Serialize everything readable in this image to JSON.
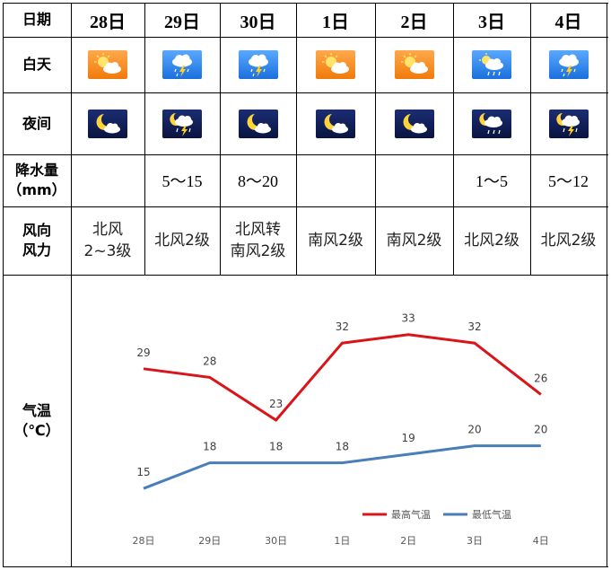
{
  "table": {
    "header_label": "日期",
    "row_labels": {
      "day": "白天",
      "night": "夜间",
      "precip_line1": "降水量",
      "precip_line2": "（mm）",
      "wind_line1": "风向",
      "wind_line2": "风力",
      "temp_line1": "气温",
      "temp_line2": "（℃）"
    },
    "columns": [
      {
        "date": "28日",
        "day_icon": "sun-cloud-icon",
        "night_icon": "moon-cloud-icon",
        "precip": "",
        "wind_line1": "北风",
        "wind_line2": "2~3级"
      },
      {
        "date": "29日",
        "day_icon": "thunder-rain-icon",
        "night_icon": "moon-thunder-rain-icon",
        "precip": "5～15",
        "wind_line1": "北风2级",
        "wind_line2": ""
      },
      {
        "date": "30日",
        "day_icon": "thunder-rain-icon",
        "night_icon": "moon-cloud-icon",
        "precip": "8～20",
        "wind_line1": "北风转",
        "wind_line2": "南风2级"
      },
      {
        "date": "1日",
        "day_icon": "sun-cloud-icon",
        "night_icon": "moon-cloud-icon",
        "precip": "",
        "wind_line1": "南风2级",
        "wind_line2": ""
      },
      {
        "date": "2日",
        "day_icon": "sun-cloud-icon",
        "night_icon": "moon-cloud-icon",
        "precip": "",
        "wind_line1": "南风2级",
        "wind_line2": ""
      },
      {
        "date": "3日",
        "day_icon": "sun-cloud-rain-icon",
        "night_icon": "moon-cloud-rain-icon",
        "precip": "1～5",
        "wind_line1": "北风2级",
        "wind_line2": ""
      },
      {
        "date": "4日",
        "day_icon": "thunder-rain-icon",
        "night_icon": "moon-thunder-rain-icon",
        "precip": "5～12",
        "wind_line1": "北风2级",
        "wind_line2": ""
      }
    ]
  },
  "chart_data": {
    "type": "line",
    "categories": [
      "28日",
      "29日",
      "30日",
      "1日",
      "2日",
      "3日",
      "4日"
    ],
    "series": [
      {
        "name": "最高气温",
        "values": [
          29,
          28,
          23,
          32,
          33,
          32,
          26
        ],
        "color": "#d9141a"
      },
      {
        "name": "最低气温",
        "values": [
          15,
          18,
          18,
          18,
          19,
          20,
          20
        ],
        "color": "#4a7eb8"
      }
    ],
    "ylim": [
      6,
      40
    ],
    "legend": "bottom-right",
    "grid": false
  },
  "colors": {
    "day_sun_bg": "#f5891e",
    "day_rain_bg": "#2d80e6",
    "night_bg": "#142363"
  }
}
